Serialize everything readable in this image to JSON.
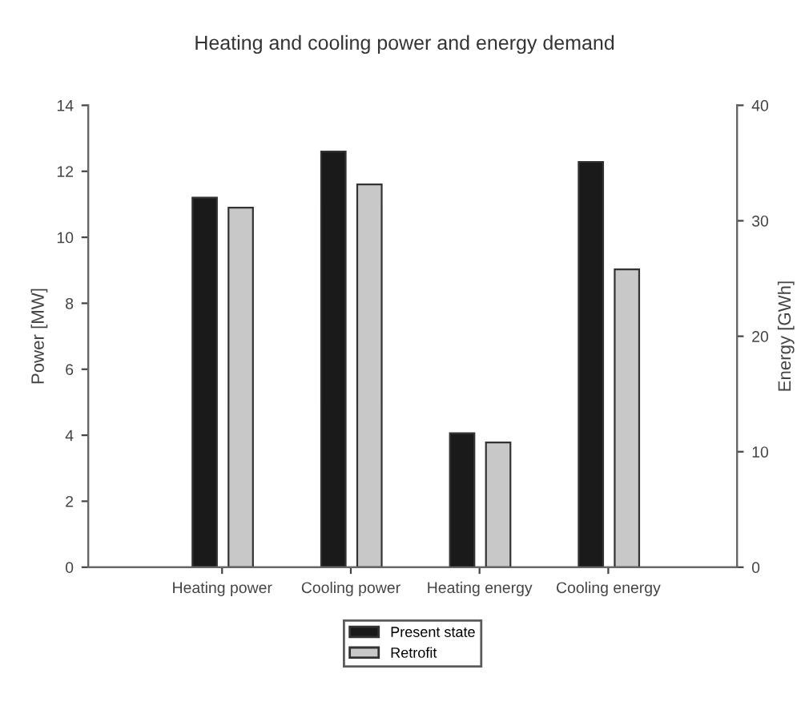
{
  "chart_data": {
    "type": "bar",
    "title": "Heating and cooling power and energy demand",
    "categories": [
      "Heating power",
      "Cooling power",
      "Heating energy",
      "Cooling energy"
    ],
    "ylabel": "Power [MW]",
    "y2label": "Energy [GWh]",
    "ylim": [
      0,
      14
    ],
    "yticks": [
      0,
      2,
      4,
      6,
      8,
      10,
      12,
      14
    ],
    "y2lim": [
      0,
      40
    ],
    "y2ticks": [
      0,
      10,
      20,
      30,
      40
    ],
    "series": [
      {
        "name": "Present state",
        "color": "#1a1a1a",
        "values": [
          11.2,
          12.6,
          null,
          null
        ]
      },
      {
        "name": "Retrofit",
        "color": "#c8c8c8",
        "values": [
          10.9,
          11.6,
          null,
          null
        ]
      },
      {
        "color": "#1a1a1a",
        "axis": "y2",
        "values": [
          null,
          null,
          11.6,
          35.1
        ]
      },
      {
        "color": "#c8c8c8",
        "axis": "y2",
        "values": [
          null,
          null,
          10.8,
          25.8
        ]
      }
    ],
    "legend": "bottom",
    "grid": false
  }
}
